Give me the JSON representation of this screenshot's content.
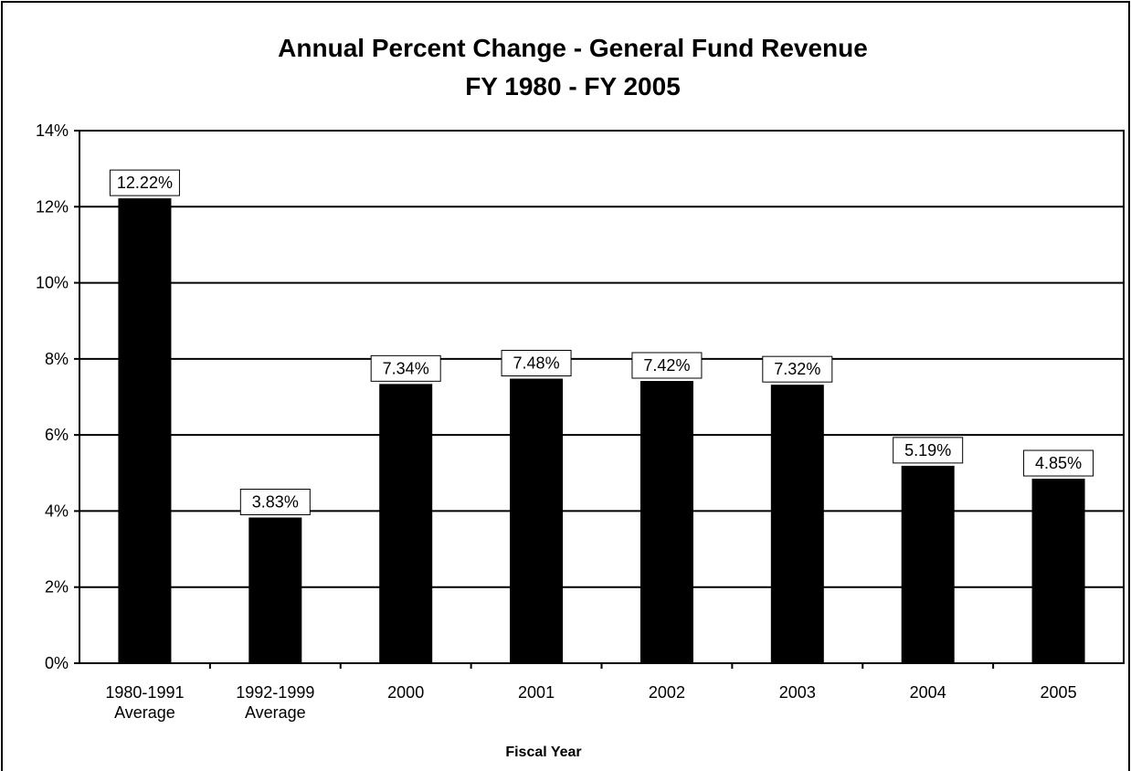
{
  "chart_data": {
    "type": "bar",
    "title": "Annual Percent Change - General Fund Revenue",
    "subtitle": "FY 1980 - FY 2005",
    "xlabel": "Fiscal Year",
    "ylabel": "",
    "categories": [
      [
        "1980-1991",
        "Average"
      ],
      [
        "1992-1999",
        "Average"
      ],
      [
        "2000"
      ],
      [
        "2001"
      ],
      [
        "2002"
      ],
      [
        "2003"
      ],
      [
        "2004"
      ],
      [
        "2005"
      ]
    ],
    "values": [
      12.22,
      3.83,
      7.34,
      7.48,
      7.42,
      7.32,
      5.19,
      4.85
    ],
    "data_labels": [
      "12.22%",
      "3.83%",
      "7.34%",
      "7.48%",
      "7.42%",
      "7.32%",
      "5.19%",
      "4.85%"
    ],
    "ylim": [
      0,
      14
    ],
    "yticks": [
      0,
      2,
      4,
      6,
      8,
      10,
      12,
      14
    ],
    "ytick_labels": [
      "0%",
      "2%",
      "4%",
      "6%",
      "8%",
      "10%",
      "12%",
      "14%"
    ],
    "grid": true,
    "legend": "none",
    "colors": {
      "bar": "#000000",
      "grid": "#000000",
      "background": "#ffffff",
      "label_box": "#ffffff"
    }
  }
}
